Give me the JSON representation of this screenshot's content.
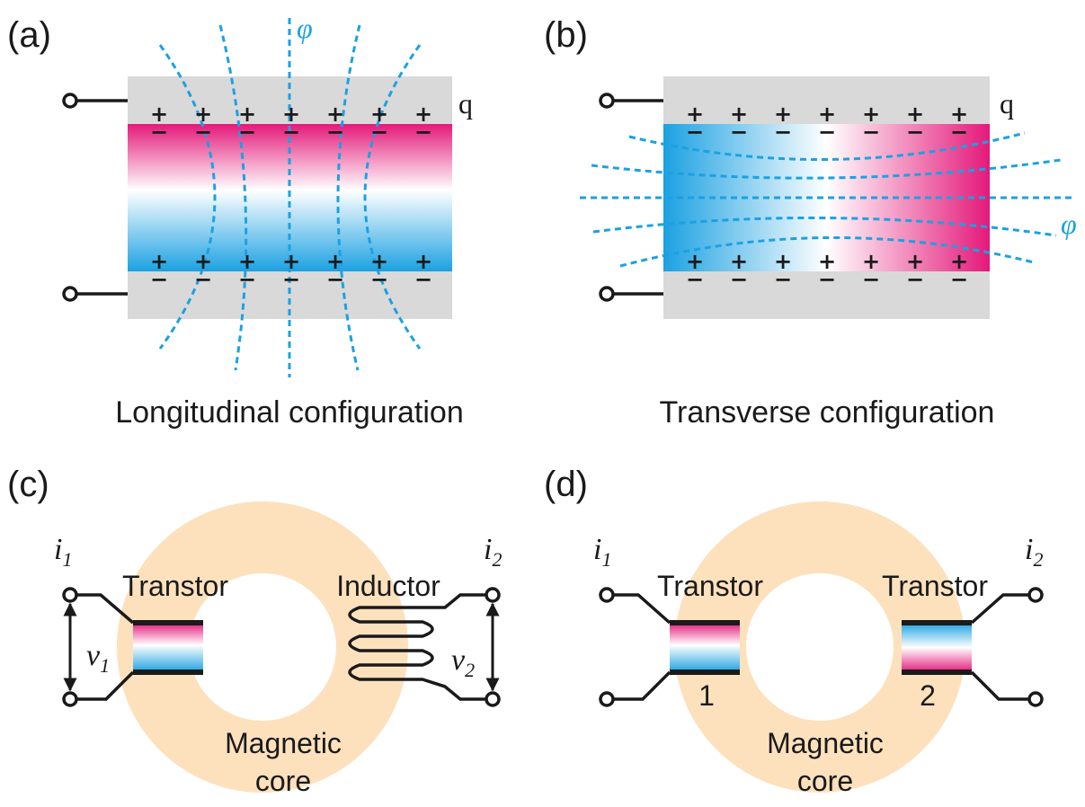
{
  "panels": [
    {
      "label": "(a)",
      "caption": "Longitudinal configuration",
      "field_label": "φ",
      "charge_label": "q",
      "plus": "+",
      "minus": "−"
    },
    {
      "label": "(b)",
      "caption": "Transverse configuration",
      "field_label": "φ",
      "charge_label": "q",
      "plus": "+",
      "minus": "−"
    },
    {
      "label": "(c)",
      "current_in": {
        "symbol": "i",
        "subscript": "1"
      },
      "current_out": {
        "symbol": "i",
        "subscript": "2"
      },
      "voltage_in": {
        "symbol": "v",
        "subscript": "1"
      },
      "voltage_out": {
        "symbol": "v",
        "subscript": "2"
      },
      "left_element": "Transtor",
      "right_element": "Inductor",
      "core_label": [
        "Magnetic",
        "core"
      ]
    },
    {
      "label": "(d)",
      "current_in": {
        "symbol": "i",
        "subscript": "1"
      },
      "current_out": {
        "symbol": "i",
        "subscript": "2"
      },
      "left_element": "Transtor",
      "right_element": "Transtor",
      "left_number": "1",
      "right_number": "2",
      "core_label": [
        "Magnetic",
        "core"
      ]
    }
  ]
}
